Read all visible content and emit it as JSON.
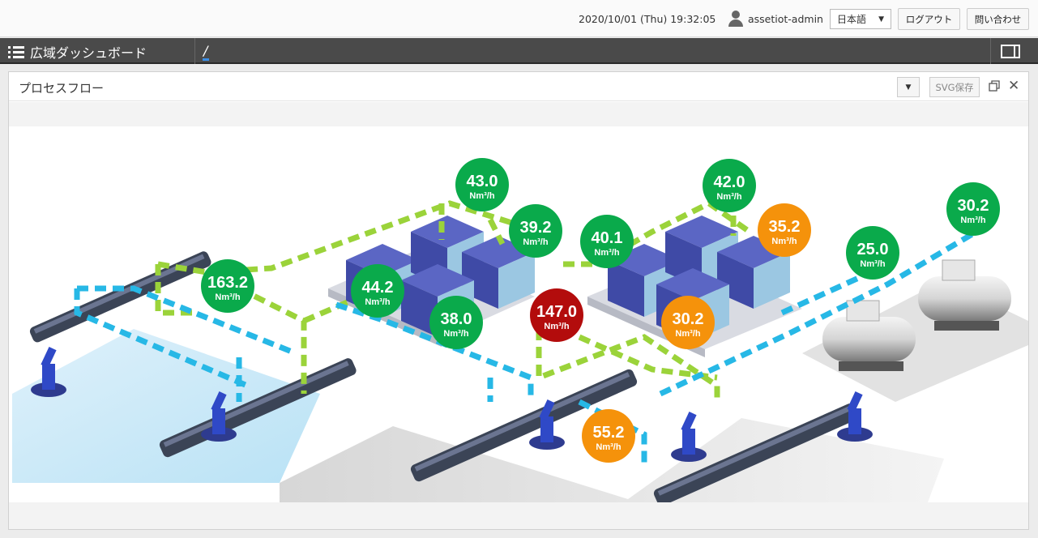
{
  "header": {
    "datetime": "2020/10/01 (Thu) 19:32:05",
    "username": "assetiot-admin",
    "language": "日本語",
    "logout_label": "ログアウト",
    "contact_label": "問い合わせ"
  },
  "nav": {
    "title": "広域ダッシュボード",
    "breadcrumb": "/"
  },
  "widget": {
    "title": "プロセスフロー",
    "svg_save_label": "SVG保存"
  },
  "colors": {
    "normal": "#0aaa4b",
    "warning": "#f5920b",
    "alert": "#b30c0c",
    "air_line": "#9bd33a",
    "gas_line": "#27b8e6"
  },
  "unit": "Nm³/h",
  "readings": [
    {
      "id": "r1",
      "value": "163.2",
      "status": "normal"
    },
    {
      "id": "r2",
      "value": "43.0",
      "status": "normal"
    },
    {
      "id": "r3",
      "value": "39.2",
      "status": "normal"
    },
    {
      "id": "r4",
      "value": "44.2",
      "status": "normal"
    },
    {
      "id": "r5",
      "value": "38.0",
      "status": "normal"
    },
    {
      "id": "r6",
      "value": "147.0",
      "status": "alert"
    },
    {
      "id": "r7",
      "value": "40.1",
      "status": "normal"
    },
    {
      "id": "r8",
      "value": "42.0",
      "status": "normal"
    },
    {
      "id": "r9",
      "value": "35.2",
      "status": "warning"
    },
    {
      "id": "r10",
      "value": "30.2",
      "status": "warning"
    },
    {
      "id": "r11",
      "value": "55.2",
      "status": "warning"
    },
    {
      "id": "r12",
      "value": "25.0",
      "status": "normal"
    },
    {
      "id": "r13",
      "value": "30.2",
      "status": "normal"
    }
  ]
}
